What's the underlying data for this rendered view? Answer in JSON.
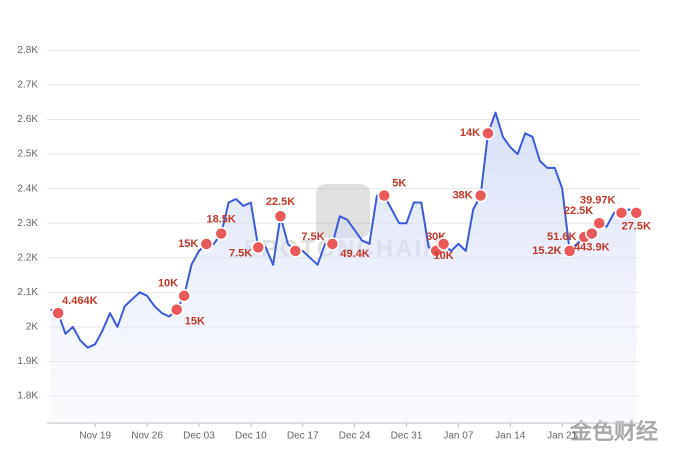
{
  "chart_data": {
    "type": "line",
    "categories": [
      null,
      null,
      null,
      null,
      null,
      null,
      "Nov 19",
      null,
      null,
      null,
      null,
      null,
      null,
      "Nov 26",
      null,
      null,
      null,
      null,
      null,
      null,
      "Dec 03",
      null,
      null,
      null,
      null,
      null,
      null,
      "Dec 10",
      null,
      null,
      null,
      null,
      null,
      null,
      "Dec 17",
      null,
      null,
      null,
      null,
      null,
      null,
      "Dec 24",
      null,
      null,
      null,
      null,
      null,
      null,
      "Dec 31",
      null,
      null,
      null,
      null,
      null,
      null,
      "Jan 07",
      null,
      null,
      null,
      null,
      null,
      null,
      "Jan 14",
      null,
      null,
      null,
      null,
      null,
      null,
      "Jan 21",
      null,
      null,
      null,
      null,
      null,
      null,
      null,
      null,
      null,
      null
    ],
    "series": [
      {
        "color": "#3b5bdb",
        "values": [
          2050,
          2040,
          1980,
          2000,
          1960,
          1940,
          1950,
          1990,
          2040,
          2000,
          2060,
          2080,
          2100,
          2090,
          2060,
          2040,
          2030,
          2050,
          2090,
          2180,
          2220,
          2240,
          2240,
          2270,
          2360,
          2370,
          2350,
          2360,
          2230,
          2230,
          2180,
          2320,
          2240,
          2220,
          2220,
          2200,
          2180,
          2240,
          2240,
          2320,
          2310,
          2280,
          2250,
          2240,
          2380,
          2380,
          2340,
          2300,
          2300,
          2360,
          2360,
          2230,
          2220,
          2240,
          2220,
          2240,
          2220,
          2340,
          2380,
          2560,
          2620,
          2550,
          2520,
          2500,
          2560,
          2550,
          2480,
          2460,
          2460,
          2400,
          2220,
          2240,
          2260,
          2270,
          2300,
          2290,
          2330,
          2330,
          2340,
          2330
        ]
      }
    ],
    "annotations": [
      null,
      "4.464K",
      null,
      null,
      null,
      null,
      null,
      null,
      null,
      null,
      null,
      null,
      null,
      null,
      null,
      null,
      null,
      "15K",
      "10K",
      null,
      null,
      "15K",
      null,
      "18.5K",
      null,
      null,
      null,
      null,
      "7.5K",
      null,
      null,
      "22.5K",
      null,
      "7.5K",
      null,
      null,
      null,
      null,
      "49.4K",
      null,
      null,
      null,
      null,
      null,
      null,
      "5K",
      null,
      null,
      null,
      null,
      null,
      null,
      "30K",
      "10K",
      null,
      null,
      null,
      null,
      "38K",
      "14K",
      null,
      null,
      null,
      null,
      null,
      null,
      null,
      null,
      null,
      null,
      "15.2K",
      null,
      "51.6K",
      "443.9K",
      "22.5K",
      null,
      null,
      "39.97K",
      null,
      "27.5K"
    ],
    "ylim": [
      1722,
      2830
    ],
    "yticks": [
      {
        "value": 1800,
        "label": "1.8K"
      },
      {
        "value": 1900,
        "label": "1.9K"
      },
      {
        "value": 2000,
        "label": "2K"
      },
      {
        "value": 2100,
        "label": "2.1K"
      },
      {
        "value": 2200,
        "label": "2.2K"
      },
      {
        "value": 2300,
        "label": "2.3K"
      },
      {
        "value": 2400,
        "label": "2.4K"
      },
      {
        "value": 2500,
        "label": "2.5K"
      },
      {
        "value": 2600,
        "label": "2.6K"
      },
      {
        "value": 2700,
        "label": "2.7K"
      },
      {
        "value": 2800,
        "label": "2.8K"
      }
    ],
    "grid": true,
    "watermarks": [
      "SPOTONCHAIN",
      "金色财经"
    ]
  }
}
